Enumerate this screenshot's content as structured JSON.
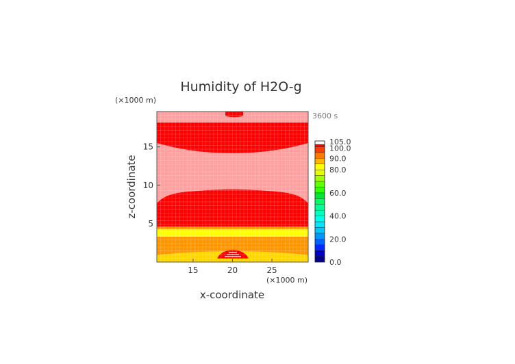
{
  "chart_data": {
    "type": "heatmap",
    "title": "Humidity of H2O-g",
    "xlabel": "x-coordinate",
    "ylabel": "z-coordinate",
    "x_unit": "(×1000 m)",
    "z_unit": "(×1000 m)",
    "time": "3600 s",
    "xlim": [
      10.4,
      29.6
    ],
    "zlim": [
      0,
      19.6
    ],
    "x_ticks": [
      15,
      20,
      25
    ],
    "z_ticks": [
      5,
      10,
      15
    ],
    "grid": true,
    "colorbar": {
      "position": "right",
      "tick_labels": [
        "0.0",
        "20.0",
        "40.0",
        "60.0",
        "80.0",
        "90.0",
        "100.0",
        "105.0"
      ],
      "tick_values": [
        0,
        20,
        40,
        60,
        80,
        90,
        100,
        105
      ],
      "levels": [
        {
          "from": 0,
          "to": 5,
          "color": "#00008c"
        },
        {
          "from": 5,
          "to": 10,
          "color": "#0000c8"
        },
        {
          "from": 10,
          "to": 15,
          "color": "#0028ff"
        },
        {
          "from": 15,
          "to": 20,
          "color": "#0064ff"
        },
        {
          "from": 20,
          "to": 25,
          "color": "#0096ff"
        },
        {
          "from": 25,
          "to": 30,
          "color": "#00c8ff"
        },
        {
          "from": 30,
          "to": 35,
          "color": "#00e6ff"
        },
        {
          "from": 35,
          "to": 40,
          "color": "#00ffe6"
        },
        {
          "from": 40,
          "to": 45,
          "color": "#00ffc0"
        },
        {
          "from": 45,
          "to": 50,
          "color": "#00ff96"
        },
        {
          "from": 50,
          "to": 55,
          "color": "#00ff64"
        },
        {
          "from": 55,
          "to": 60,
          "color": "#00e632"
        },
        {
          "from": 60,
          "to": 65,
          "color": "#32ff00"
        },
        {
          "from": 65,
          "to": 70,
          "color": "#64ff00"
        },
        {
          "from": 70,
          "to": 75,
          "color": "#a0ff00"
        },
        {
          "from": 75,
          "to": 80,
          "color": "#e6ff00"
        },
        {
          "from": 80,
          "to": 85,
          "color": "#ffff00"
        },
        {
          "from": 85,
          "to": 90,
          "color": "#ffb400"
        },
        {
          "from": 90,
          "to": 95,
          "color": "#ff7800"
        },
        {
          "from": 95,
          "to": 100,
          "color": "#ff3c00"
        },
        {
          "from": 100,
          "to": 102,
          "color": "#ff0000"
        },
        {
          "from": 102,
          "to": 105,
          "color": "#ffffff"
        }
      ]
    },
    "regions": [
      {
        "name": "ground-layer",
        "color": "#ffd700"
      },
      {
        "name": "lower-yellow-band",
        "color": "#ffff00"
      },
      {
        "name": "lower-orange-band",
        "color": "#ff9600"
      },
      {
        "name": "central-saturated-band",
        "color": "#ff0000"
      },
      {
        "name": "middle-pink-band",
        "color": "#ffa0a0"
      },
      {
        "name": "upper-saturated-band",
        "color": "#ff0000"
      },
      {
        "name": "top-pink-region",
        "color": "#ffa0a0"
      },
      {
        "name": "bottom-center-dome",
        "color": "#ff0000"
      }
    ]
  }
}
